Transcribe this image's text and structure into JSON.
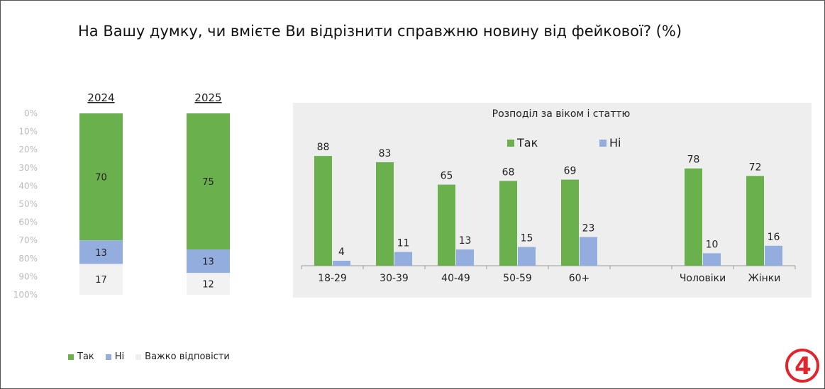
{
  "title": "На Вашу думку, чи вмієте Ви відрізнити справжню новину від фейкової? (%)",
  "colors": {
    "yes": "#6ab04c",
    "no": "#93aede",
    "hard": "#f2f2f2",
    "panel_bg": "#eeeeee",
    "axis_text": "#bbbbbb",
    "logo_red": "#e0262c"
  },
  "legend": [
    {
      "key": "yes",
      "label": "Так"
    },
    {
      "key": "no",
      "label": "Ні"
    },
    {
      "key": "hard",
      "label": "Важко відповісти"
    }
  ],
  "chart_data": [
    {
      "type": "bar",
      "stacked": true,
      "categories": [
        "2024",
        "2025"
      ],
      "series": [
        {
          "name": "Так",
          "values": [
            70,
            75
          ]
        },
        {
          "name": "Ні",
          "values": [
            13,
            13
          ]
        },
        {
          "name": "Важко відповісти",
          "values": [
            17,
            12
          ]
        }
      ],
      "ylim": [
        0,
        100
      ],
      "y_reversed": true,
      "yticks": [
        "0%",
        "10%",
        "20%",
        "30%",
        "40%",
        "50%",
        "60%",
        "70%",
        "80%",
        "90%",
        "100%"
      ],
      "legend_position": "bottom-left"
    },
    {
      "type": "bar",
      "title": "Розподіл за віком і статтю",
      "categories": [
        "18-29",
        "30-39",
        "40-49",
        "50-59",
        "60+",
        "",
        "Чоловіки",
        "Жінки"
      ],
      "series": [
        {
          "name": "Так",
          "values": [
            88,
            83,
            65,
            68,
            69,
            null,
            78,
            72
          ]
        },
        {
          "name": "Ні",
          "values": [
            4,
            11,
            13,
            15,
            23,
            null,
            10,
            16
          ]
        }
      ],
      "legend_position": "top-center"
    }
  ],
  "logo_text": "4"
}
